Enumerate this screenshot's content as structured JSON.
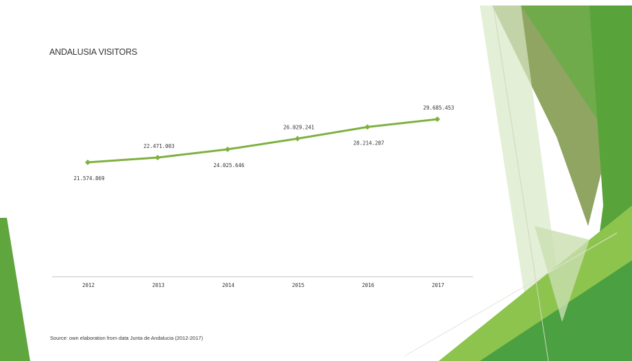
{
  "chart_data": {
    "type": "line",
    "title": "ANDALUSIA VISITORS",
    "xlabel": "",
    "ylabel": "",
    "categories": [
      "2012",
      "2013",
      "2014",
      "2015",
      "2016",
      "2017"
    ],
    "values": [
      21574869,
      22471003,
      24025646,
      26029241,
      28214287,
      29685453
    ],
    "data_labels": [
      "21.574.869",
      "22.471.003",
      "24.025.646",
      "26.029.241",
      "28.214.287",
      "29.685.453"
    ],
    "data_label_positions": [
      "below",
      "above",
      "below",
      "above",
      "below",
      "above"
    ],
    "ylim": [
      0,
      36000000
    ],
    "grid": false,
    "legend": "none",
    "line_color": "#7db13f",
    "axis_color": "#bfbfbf"
  },
  "footer": {
    "source": "Source: own elaboration from data Junta de Andalucia (2012-2017)"
  },
  "theme": {
    "accent_green": "#6aa84f",
    "light_green": "#a9d08e",
    "dark_green": "#3f8f3f"
  }
}
